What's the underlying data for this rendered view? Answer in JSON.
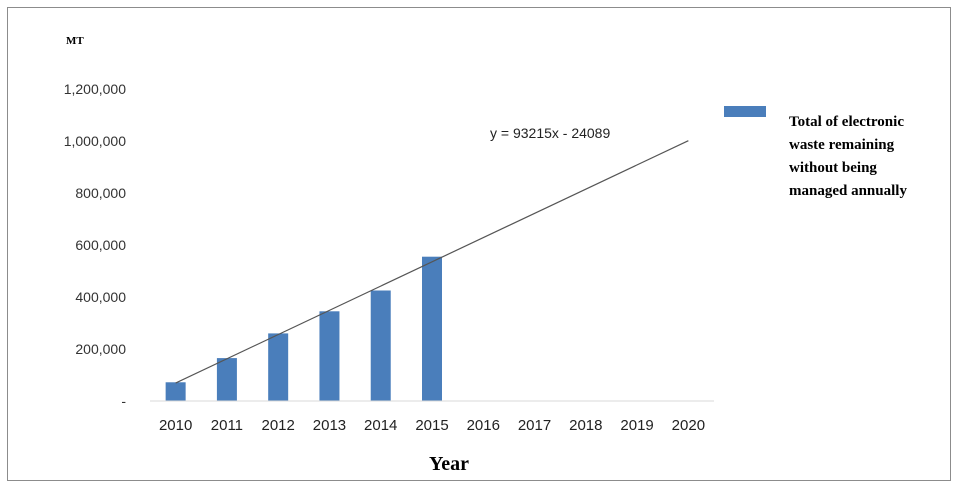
{
  "chart_data": {
    "type": "bar",
    "unit_label": "MT",
    "xlabel": "Year",
    "ylabel": "",
    "ylim": [
      0,
      1200000
    ],
    "yticks": [
      0,
      200000,
      400000,
      600000,
      800000,
      1000000,
      1200000
    ],
    "ytick_labels": [
      "-",
      "200,000",
      "400,000",
      "600,000",
      "800,000",
      "1,000,000",
      "1,200,000"
    ],
    "categories": [
      "2010",
      "2011",
      "2012",
      "2013",
      "2014",
      "2015",
      "2016",
      "2017",
      "2018",
      "2019",
      "2020"
    ],
    "series": [
      {
        "name": "Total of electronic waste remaining without being managed annually",
        "legend_lines": [
          "Total of electronic",
          "waste remaining",
          "without being",
          "managed annually"
        ],
        "color": "#4a7ebb",
        "values": [
          72000,
          165000,
          260000,
          345000,
          425000,
          555000,
          null,
          null,
          null,
          null,
          null
        ]
      }
    ],
    "trendline": {
      "type": "linear",
      "equation": "y = 93215x - 24089",
      "slope": 93215,
      "intercept": -24089,
      "color": "#555555"
    },
    "grid": false,
    "legend_position": "right"
  }
}
